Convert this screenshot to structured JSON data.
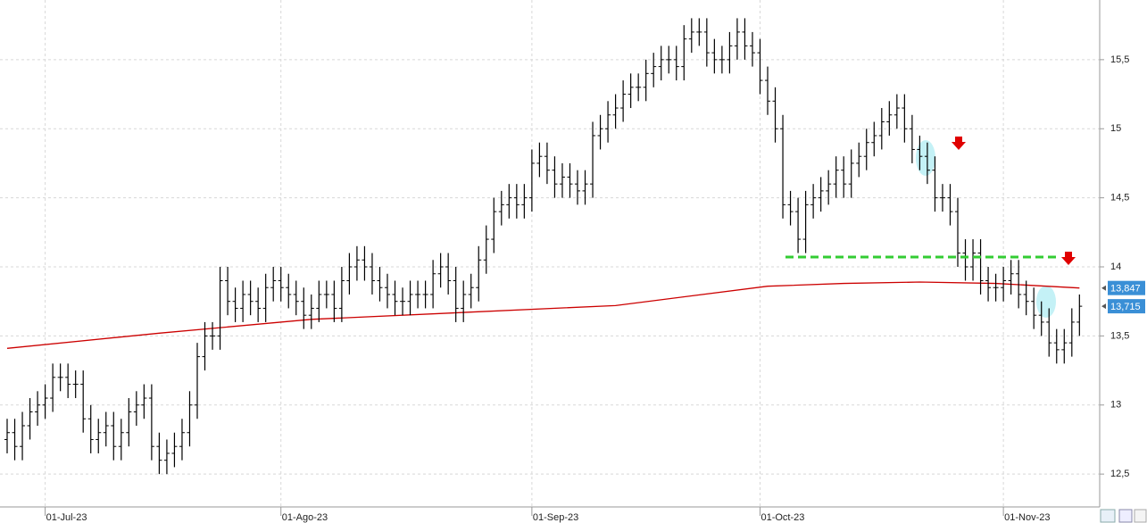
{
  "chart_data": {
    "type": "ohlc",
    "categories": [
      null,
      null,
      null,
      null,
      null,
      "01-Jul-23",
      null,
      null,
      null,
      null,
      null,
      null,
      null,
      null,
      null,
      null,
      null,
      null,
      null,
      null,
      null,
      null,
      null,
      null,
      null,
      null,
      null,
      null,
      null,
      null,
      null,
      null,
      null,
      null,
      null,
      null,
      "01-Ago-23",
      null,
      null,
      null,
      null,
      null,
      null,
      null,
      null,
      null,
      null,
      null,
      null,
      null,
      null,
      null,
      null,
      null,
      null,
      null,
      null,
      null,
      null,
      null,
      null,
      null,
      null,
      null,
      null,
      null,
      null,
      null,
      null,
      "01-Sep-23",
      null,
      null,
      null,
      null,
      null,
      null,
      null,
      null,
      null,
      null,
      null,
      null,
      null,
      null,
      null,
      null,
      null,
      null,
      null,
      null,
      null,
      null,
      null,
      null,
      null,
      null,
      null,
      null,
      null,
      "01-Oct-23",
      null,
      null,
      null,
      null,
      null,
      null,
      null,
      null,
      null,
      null,
      null,
      null,
      null,
      null,
      null,
      null,
      null,
      null,
      null,
      null,
      null,
      null,
      null,
      null,
      null,
      null,
      null,
      null,
      null,
      null,
      null,
      "01-Nov-23",
      null,
      null,
      null,
      null,
      null,
      null,
      null,
      null,
      null,
      null
    ],
    "open": [
      12.75,
      12.8,
      12.7,
      12.85,
      12.95,
      13.0,
      13.05,
      13.2,
      13.2,
      13.15,
      13.15,
      12.9,
      12.75,
      12.8,
      12.85,
      12.7,
      12.8,
      12.95,
      13.0,
      13.05,
      12.7,
      12.6,
      12.65,
      12.7,
      12.8,
      13.0,
      13.35,
      13.5,
      13.5,
      13.9,
      13.75,
      13.7,
      13.8,
      13.75,
      13.7,
      13.85,
      13.9,
      13.85,
      13.8,
      13.75,
      13.65,
      13.7,
      13.8,
      13.8,
      13.7,
      13.9,
      14.0,
      14.05,
      14.0,
      13.9,
      13.85,
      13.8,
      13.75,
      13.75,
      13.8,
      13.8,
      13.8,
      13.95,
      14.0,
      13.9,
      13.7,
      13.8,
      13.85,
      14.05,
      14.2,
      14.4,
      14.45,
      14.5,
      14.45,
      14.5,
      14.75,
      14.8,
      14.7,
      14.6,
      14.65,
      14.6,
      14.55,
      14.6,
      14.95,
      15.0,
      15.1,
      15.15,
      15.25,
      15.3,
      15.3,
      15.4,
      15.45,
      15.5,
      15.5,
      15.45,
      15.65,
      15.7,
      15.7,
      15.55,
      15.5,
      15.5,
      15.6,
      15.7,
      15.6,
      15.55,
      15.35,
      15.2,
      15.0,
      14.45,
      14.4,
      14.2,
      14.45,
      14.5,
      14.55,
      14.6,
      14.7,
      14.6,
      14.75,
      14.8,
      14.9,
      14.95,
      15.05,
      15.1,
      15.15,
      15.0,
      14.85,
      14.8,
      14.7,
      14.5,
      14.5,
      14.4,
      14.1,
      14.0,
      14.1,
      13.9,
      13.85,
      13.85,
      13.9,
      13.95,
      13.8,
      13.75,
      13.65,
      13.6,
      13.45,
      13.4,
      13.45,
      13.6
    ],
    "high": [
      12.9,
      12.9,
      12.95,
      13.05,
      13.1,
      13.15,
      13.3,
      13.3,
      13.3,
      13.25,
      13.25,
      13.0,
      12.9,
      12.95,
      12.95,
      12.9,
      13.05,
      13.1,
      13.15,
      13.15,
      12.8,
      12.75,
      12.8,
      12.9,
      13.1,
      13.45,
      13.6,
      13.6,
      14.0,
      14.0,
      13.85,
      13.9,
      13.9,
      13.85,
      13.95,
      14.0,
      14.0,
      13.95,
      13.9,
      13.85,
      13.8,
      13.9,
      13.9,
      13.9,
      14.0,
      14.1,
      14.15,
      14.15,
      14.1,
      14.0,
      13.95,
      13.9,
      13.85,
      13.9,
      13.9,
      13.9,
      14.05,
      14.1,
      14.1,
      14.0,
      13.9,
      13.95,
      14.15,
      14.3,
      14.5,
      14.55,
      14.6,
      14.6,
      14.6,
      14.85,
      14.9,
      14.9,
      14.8,
      14.75,
      14.75,
      14.7,
      14.7,
      15.05,
      15.1,
      15.2,
      15.25,
      15.35,
      15.4,
      15.4,
      15.5,
      15.55,
      15.6,
      15.6,
      15.6,
      15.75,
      15.8,
      15.8,
      15.8,
      15.65,
      15.6,
      15.7,
      15.8,
      15.8,
      15.7,
      15.65,
      15.45,
      15.3,
      15.1,
      14.55,
      14.5,
      14.55,
      14.6,
      14.65,
      14.7,
      14.8,
      14.8,
      14.85,
      14.9,
      15.0,
      15.05,
      15.15,
      15.2,
      15.25,
      15.25,
      15.1,
      14.95,
      14.9,
      14.8,
      14.6,
      14.6,
      14.5,
      14.2,
      14.2,
      14.2,
      14.0,
      13.95,
      14.0,
      14.05,
      14.05,
      13.9,
      13.85,
      13.75,
      13.7,
      13.55,
      13.55,
      13.7,
      13.8
    ],
    "low": [
      12.65,
      12.6,
      12.6,
      12.75,
      12.85,
      12.9,
      12.95,
      13.1,
      13.05,
      13.05,
      12.8,
      12.65,
      12.65,
      12.7,
      12.6,
      12.6,
      12.7,
      12.85,
      12.9,
      12.6,
      12.5,
      12.5,
      12.55,
      12.6,
      12.7,
      12.9,
      13.25,
      13.4,
      13.4,
      13.65,
      13.6,
      13.6,
      13.65,
      13.6,
      13.6,
      13.75,
      13.75,
      13.7,
      13.65,
      13.55,
      13.55,
      13.6,
      13.7,
      13.6,
      13.6,
      13.8,
      13.9,
      13.9,
      13.8,
      13.75,
      13.7,
      13.65,
      13.65,
      13.65,
      13.7,
      13.7,
      13.7,
      13.85,
      13.8,
      13.6,
      13.6,
      13.7,
      13.75,
      13.95,
      14.1,
      14.3,
      14.35,
      14.35,
      14.35,
      14.4,
      14.65,
      14.6,
      14.5,
      14.5,
      14.5,
      14.45,
      14.45,
      14.5,
      14.85,
      14.9,
      15.0,
      15.05,
      15.15,
      15.2,
      15.2,
      15.3,
      15.35,
      15.4,
      15.35,
      15.35,
      15.55,
      15.6,
      15.45,
      15.4,
      15.4,
      15.4,
      15.5,
      15.5,
      15.45,
      15.25,
      15.1,
      14.9,
      14.35,
      14.3,
      14.1,
      14.1,
      14.35,
      14.4,
      14.45,
      14.5,
      14.5,
      14.5,
      14.65,
      14.7,
      14.8,
      14.85,
      14.95,
      15.0,
      14.9,
      14.75,
      14.7,
      14.6,
      14.4,
      14.4,
      14.3,
      14.0,
      13.9,
      13.9,
      13.8,
      13.75,
      13.75,
      13.75,
      13.8,
      13.7,
      13.65,
      13.55,
      13.5,
      13.35,
      13.3,
      13.3,
      13.35,
      13.5
    ],
    "close": [
      12.8,
      12.7,
      12.85,
      12.95,
      13.0,
      13.05,
      13.2,
      13.2,
      13.15,
      13.15,
      12.9,
      12.75,
      12.8,
      12.85,
      12.7,
      12.8,
      12.95,
      13.0,
      13.05,
      12.7,
      12.6,
      12.65,
      12.7,
      12.8,
      13.0,
      13.35,
      13.5,
      13.5,
      13.9,
      13.75,
      13.7,
      13.8,
      13.75,
      13.7,
      13.85,
      13.9,
      13.85,
      13.8,
      13.75,
      13.65,
      13.7,
      13.8,
      13.8,
      13.7,
      13.9,
      14.0,
      14.05,
      14.0,
      13.9,
      13.85,
      13.8,
      13.75,
      13.75,
      13.8,
      13.8,
      13.8,
      13.95,
      14.0,
      13.9,
      13.7,
      13.8,
      13.85,
      14.05,
      14.2,
      14.4,
      14.45,
      14.5,
      14.45,
      14.5,
      14.75,
      14.8,
      14.7,
      14.6,
      14.65,
      14.6,
      14.55,
      14.6,
      14.95,
      15.0,
      15.1,
      15.15,
      15.25,
      15.3,
      15.3,
      15.4,
      15.45,
      15.5,
      15.5,
      15.45,
      15.65,
      15.7,
      15.7,
      15.55,
      15.5,
      15.5,
      15.6,
      15.7,
      15.6,
      15.55,
      15.35,
      15.2,
      15.0,
      14.45,
      14.4,
      14.2,
      14.45,
      14.5,
      14.55,
      14.6,
      14.7,
      14.6,
      14.75,
      14.8,
      14.9,
      14.95,
      15.05,
      15.1,
      15.15,
      15.0,
      14.85,
      14.8,
      14.7,
      14.5,
      14.5,
      14.4,
      14.1,
      14.0,
      14.1,
      13.9,
      13.85,
      13.85,
      13.9,
      13.95,
      13.8,
      13.75,
      13.65,
      13.6,
      13.45,
      13.4,
      13.45,
      13.6,
      13.715
    ],
    "color": "#000000",
    "ma": {
      "color": "#cc0000",
      "x": [
        0,
        20,
        40,
        60,
        80,
        100,
        110,
        120,
        130,
        141
      ],
      "values": [
        13.41,
        13.52,
        13.62,
        13.67,
        13.72,
        13.86,
        13.88,
        13.89,
        13.88,
        13.847
      ]
    },
    "ylim": [
      12.262,
      15.932
    ],
    "yticks": [
      {
        "value": 12.5,
        "label": "12,5"
      },
      13,
      {
        "value": 13.5,
        "label": "13,5"
      },
      14,
      {
        "value": 14.5,
        "label": "14,5"
      },
      15,
      {
        "value": 15.5,
        "label": "15,5"
      }
    ],
    "grid": true,
    "last_prices": [
      {
        "value": 13.847,
        "label": "13,847",
        "color": "#3a8fd6"
      },
      {
        "value": 13.715,
        "label": "13,715",
        "color": "#3a8fd6"
      }
    ]
  }
}
